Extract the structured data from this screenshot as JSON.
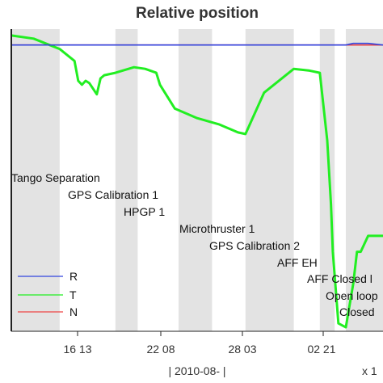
{
  "chart_data": {
    "type": "line",
    "title": "Relative position",
    "xlabel": "| 2010-08- |",
    "x_multiplier": "x 1",
    "x_ticks": [
      "16 13",
      "22 08",
      "28 03",
      "02 21"
    ],
    "shaded_bands": [
      {
        "start": 0.0,
        "end": 1.3
      },
      {
        "start": 2.8,
        "end": 3.4
      },
      {
        "start": 4.5,
        "end": 5.4
      },
      {
        "start": 6.3,
        "end": 7.6
      },
      {
        "start": 8.3,
        "end": 8.7
      },
      {
        "start": 9.0,
        "end": 10.0
      }
    ],
    "annotations": [
      "Tango Separation",
      "GPS Calibration 1",
      "HPGP 1",
      "Microthruster 1",
      "GPS Calibration 2",
      "AFF EH",
      "AFF Closed l",
      "Open loop",
      "Closed"
    ],
    "legend_position": "bottom-left",
    "series": [
      {
        "name": "R",
        "color": "#3344dd",
        "x": [
          0,
          9.0,
          9.2,
          9.6,
          10.0
        ],
        "y": [
          0,
          0,
          2,
          2,
          0
        ]
      },
      {
        "name": "T",
        "color": "#22ee22",
        "x": [
          0,
          0.6,
          1.3,
          1.7,
          1.8,
          1.9,
          2.0,
          2.1,
          2.3,
          2.4,
          2.5,
          2.8,
          3.3,
          3.6,
          3.9,
          4.0,
          4.2,
          4.4,
          5.0,
          5.6,
          6.1,
          6.3,
          6.8,
          7.6,
          8.0,
          8.3,
          8.5,
          8.6,
          8.65,
          8.8,
          9.0,
          9.2,
          9.3,
          9.4,
          9.6,
          10.0
        ],
        "y": [
          12,
          8,
          -5,
          -20,
          -45,
          -50,
          -45,
          -48,
          -62,
          -42,
          -38,
          -35,
          -28,
          -30,
          -35,
          -50,
          -65,
          -80,
          -92,
          -100,
          -110,
          -112,
          -60,
          -30,
          -32,
          -35,
          -120,
          -200,
          -260,
          -350,
          -355,
          -300,
          -260,
          -260,
          -240,
          -240
        ]
      },
      {
        "name": "N",
        "color": "#ee4444",
        "x": [
          0,
          5.4,
          6.3,
          10.0
        ],
        "y": [
          0,
          0,
          0,
          0
        ]
      }
    ]
  }
}
